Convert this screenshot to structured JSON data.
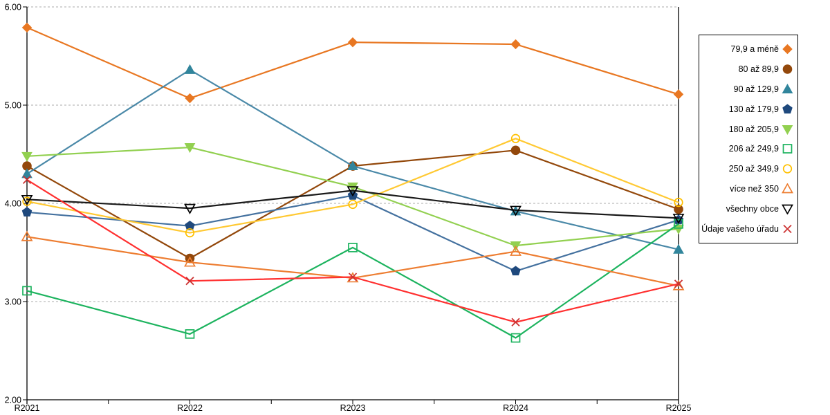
{
  "chart_data": {
    "type": "line",
    "title": "",
    "x_categories": [
      "R2021",
      "R2022",
      "R2023",
      "R2024",
      "R2025"
    ],
    "ylim": [
      2.0,
      6.0
    ],
    "yticks": [
      6,
      5,
      4,
      3,
      2
    ],
    "ytick_labels": [
      "6.00",
      "5.00",
      "4.00",
      "3.00",
      "2.00"
    ],
    "grid": "horizontal-dashed",
    "grid_color": "#ABABAB",
    "axis_color": "#000000",
    "legend_position": "right-box",
    "series": [
      {
        "name": "79,9 a méně",
        "marker": "diamond",
        "filled": true,
        "color": "#E87722",
        "line_color": "#E87722",
        "values": [
          5.79,
          5.07,
          5.64,
          5.62,
          5.11
        ]
      },
      {
        "name": "80 až 89,9",
        "marker": "circle",
        "filled": true,
        "color": "#93480B",
        "line_color": "#93480B",
        "values": [
          4.38,
          3.44,
          4.38,
          4.54,
          3.94
        ]
      },
      {
        "name": "90 až 129,9",
        "marker": "triangle-up",
        "filled": true,
        "color": "#31859C",
        "line_color": "#4A89A8",
        "values": [
          4.3,
          5.36,
          4.38,
          3.92,
          3.53
        ]
      },
      {
        "name": "130 až 179,9",
        "marker": "pentagon",
        "filled": true,
        "color": "#1F497D",
        "line_color": "#44719F",
        "values": [
          3.91,
          3.77,
          4.08,
          3.31,
          3.83
        ]
      },
      {
        "name": "180 až 205,9",
        "marker": "triangle-down",
        "filled": true,
        "color": "#92D050",
        "line_color": "#92D050",
        "values": [
          4.48,
          4.57,
          4.17,
          3.57,
          3.74
        ]
      },
      {
        "name": "206 až 249,9",
        "marker": "square",
        "filled": false,
        "color": "#1CB35E",
        "line_color": "#1CB35E",
        "values": [
          3.11,
          2.67,
          3.55,
          2.63,
          3.79
        ]
      },
      {
        "name": "250 až 349,9",
        "marker": "circle",
        "filled": false,
        "color": "#FFC000",
        "line_color": "#FFC933",
        "values": [
          4.02,
          3.7,
          3.99,
          4.66,
          4.01
        ]
      },
      {
        "name": "více než 350",
        "marker": "triangle-up",
        "filled": false,
        "color": "#ED7D31",
        "line_color": "#ED7D31",
        "values": [
          3.66,
          3.4,
          3.24,
          3.51,
          3.16
        ]
      },
      {
        "name": "všechny obce",
        "marker": "triangle-down",
        "filled": false,
        "color": "#000000",
        "line_color": "#1A1A1A",
        "values": [
          4.04,
          3.95,
          4.13,
          3.93,
          3.85
        ]
      },
      {
        "name": "Údaje vašeho úřadu",
        "marker": "x",
        "filled": false,
        "color": "#CC3333",
        "line_color": "#FF3030",
        "values": [
          4.24,
          3.21,
          3.25,
          2.79,
          3.18
        ]
      }
    ]
  }
}
